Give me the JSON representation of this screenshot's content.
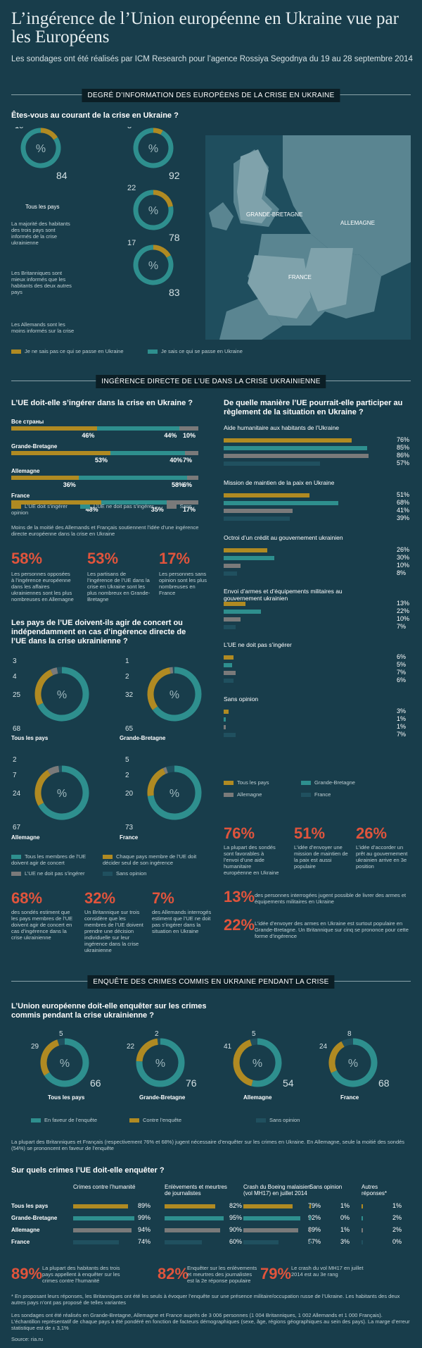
{
  "header": {
    "title": "L’ingérence de l’Union européenne en Ukraine vue par les Européens",
    "subtitle": "Les sondages ont été réalisés par ICM Research pour l’agence Rossiya Segodnya du 19 au 28 septembre 2014"
  },
  "colors": {
    "gold": "#b08a22",
    "teal": "#2e8f8e",
    "gray": "#7a7a7a",
    "dark": "#20505f",
    "red": "#e1543c",
    "bg": "#183d4b"
  },
  "sec1": {
    "title": "DEGRÉ D’INFORMATION DES EUROPÉENS DE LA CRISE EN UKRAINE",
    "question": "Êtes-vous au courant de la crise en Ukraine ?",
    "note1": "La majorité des habitants des trois pays sont informés de la crise ukrainienne",
    "note2": "Les Britanniques sont mieux informés que les habitants des deux autres pays",
    "note3": "Les Allemands sont les moins informés sur la crise",
    "legend_no": "Je ne sais pas ce qui se passe en Ukraine",
    "legend_yes": "Je sais ce qui se passe en Ukraine",
    "all_label": "Tous les pays",
    "map_labels": {
      "gb": "GRANDE-BRETAGNE",
      "de": "ALLEMAGNE",
      "fr": "FRANCE"
    }
  },
  "sec2": {
    "title": "INGÉRENCE DIRECTE DE L’UE DANS LA CRISE UKRAINIENNE",
    "q1": "L’UE doit-elle s’ingérer dans la crise en Ukraine ?",
    "q2": "De quelle manière l’UE pourrait-elle participer au règlement de la situation en Ukraine ?",
    "legend1": [
      "L’UE doit s’ingérer",
      "L’UE ne doit pas s’ingérer",
      "Sans opinion"
    ],
    "note": "Moins de la moitié des Allemands et Français soutiennent l’idée d’une ingérence directe européenne dans la crise en Ukraine",
    "stats1": [
      {
        "n": "58%",
        "t": "Les personnes opposées à l’ingérence européenne dans les affaires ukrainiennes sont les plus nombreuses en Allemagne"
      },
      {
        "n": "53%",
        "t": "Les partisans de l’ingérence de l’UE dans la crise en Ukraine sont les plus nombreux en Grande-Bretagne"
      },
      {
        "n": "17%",
        "t": "Les personnes sans opinion sont les plus nombreuses en France"
      }
    ],
    "q3": "Les pays de l’UE doivent-ils agir de concert ou indépendamment en cas d’ingérence directe de l’UE dans la crise ukrainienne ?",
    "legend3": [
      "Tous les membres de l’UE doivent agir de concert",
      "Chaque pays membre de l’UE doit décider seul de son ingérence",
      "L’UE ne doit pas s’ingérer",
      "Sans opinion"
    ],
    "stats3": [
      {
        "n": "68%",
        "t": "des sondés estiment que les pays membres de l’UE doivent agir de concert en cas d’ingérence dans la crise ukrainienne"
      },
      {
        "n": "32%",
        "t": "Un Britannique sur trois considère que les membres de l’UE doivent prendre une décision individuelle sur leur ingérence dans la crise ukrainienne"
      },
      {
        "n": "7%",
        "t": "des Allemands interrogés estiment que l’UE ne doit pas s’ingérer dans la situation en Ukraine"
      }
    ],
    "legend_countries": [
      "Tous les pays",
      "Grande-Bretagne",
      "Allemagne",
      "France"
    ],
    "stats2": [
      {
        "n": "76%",
        "t": "La plupart des sondés sont favorables à l’envoi d’une aide humanitaire européenne en Ukraine"
      },
      {
        "n": "51%",
        "t": "L’idée d’envoyer une mission de maintien de la paix est aussi populaire"
      },
      {
        "n": "26%",
        "t": "L’idée d’accorder un prêt au gouvernement ukrainien arrive en 3e position"
      }
    ],
    "stats2b": [
      {
        "n": "13%",
        "t": "des personnes interrogées jugent possible de livrer des armes et équipements militaires en Ukraine"
      },
      {
        "n": "22%",
        "t": "L’idée d’envoyer des armes en Ukraine est surtout populaire en Grande-Bretagne. Un Britannique sur cinq se prononce pour cette forme d’ingérence"
      }
    ]
  },
  "sec3": {
    "title": "ENQUÊTE DES CRIMES COMMIS EN UKRAINE PENDANT LA CRISE",
    "q1": "L’Union européenne doit-elle enquêter sur les crimes commis pendant la crise ukrainienne ?",
    "legend": [
      "En faveur de l’enquête",
      "Contre l’enquête",
      "Sans opinion"
    ],
    "note": "La plupart des Britanniques et Français (respectivement 76% et 68%) jugent nécessaire d’enquêter sur les crimes en Ukraine. En Allemagne, seule la moitié des sondés (54%) se prononcent en faveur de l’enquête",
    "q2": "Sur quels crimes l’UE doit-elle enquêter ?",
    "stats": [
      {
        "n": "89%",
        "t": "La plupart des habitants des trois pays appellent à enquêter sur les crimes contre l’humanité"
      },
      {
        "n": "82%",
        "t": "Enquêter sur les enlèvements et meurtres des journalistes est la 2e réponse populaire"
      },
      {
        "n": "79%",
        "t": "Le crash du vol MH17 en juillet 2014 est au 3e rang"
      }
    ],
    "footnote": "* En proposant leurs réponses, les Britanniques ont été les seuls à évoquer l’enquête sur une présence militaire/occupation russe de l’Ukraine. Les habitants des deux autres pays n’ont pas proposé de telles variantes",
    "method": "Les sondages ont été réalisés en Grande-Bretagne, Allemagne et France auprès de 3 006 personnes (1 004 Britanniques, 1 002 Allemands et 1 000 Français). L’échantillon représentatif de chaque pays a été pondéré en fonction de facteurs démographiques (sexe, âge, régions géographiques au sein des pays). La marge d’erreur statistique est de ± 3,1%",
    "source": "Source: ria.ru"
  },
  "chart_data": [
    {
      "type": "donut",
      "title": "Êtes-vous au courant de la crise en Ukraine ?",
      "series": [
        {
          "name": "Tous les pays",
          "values": [
            16,
            84
          ]
        },
        {
          "name": "Grande-Bretagne",
          "values": [
            8,
            92
          ]
        },
        {
          "name": "Allemagne",
          "values": [
            22,
            78
          ]
        },
        {
          "name": "France",
          "values": [
            17,
            83
          ]
        }
      ],
      "categories": [
        "Je ne sais pas ce qui se passe en Ukraine",
        "Je sais ce qui se passe en Ukraine"
      ]
    },
    {
      "type": "bar",
      "title": "L’UE doit-elle s’ingérer dans la crise en Ukraine ?",
      "categories": [
        "Все страны",
        "Grande-Bretagne",
        "Allemagne",
        "France"
      ],
      "series": [
        {
          "name": "L’UE doit s’ingérer",
          "values": [
            46,
            53,
            36,
            48
          ]
        },
        {
          "name": "L’UE ne doit pas s’ingérer",
          "values": [
            44,
            40,
            58,
            35
          ]
        },
        {
          "name": "Sans opinion",
          "values": [
            10,
            7,
            6,
            17
          ]
        }
      ]
    },
    {
      "type": "bar",
      "title": "De quelle manière l’UE pourrait-elle participer au règlement de la situation en Ukraine ?",
      "categories": [
        "Aide humanitaire aux habitants de l’Ukraine",
        "Mission de maintien de la paix en Ukraine",
        "Octroi d’un crédit au gouvernement ukrainien",
        "Envoi d’armes et d’équipements militaires au gouvernement ukrainien",
        "L’UE ne doit pas s’ingérer",
        "Sans opinion"
      ],
      "series": [
        {
          "name": "Tous les pays",
          "values": [
            76,
            51,
            26,
            13,
            6,
            3
          ]
        },
        {
          "name": "Grande-Bretagne",
          "values": [
            85,
            68,
            30,
            22,
            5,
            1
          ]
        },
        {
          "name": "Allemagne",
          "values": [
            86,
            41,
            10,
            10,
            7,
            1
          ]
        },
        {
          "name": "France",
          "values": [
            57,
            39,
            8,
            7,
            6,
            7
          ]
        }
      ]
    },
    {
      "type": "donut",
      "title": "Les pays de l’UE doivent-ils agir de concert ou indépendamment en cas d’ingérence directe de l’UE dans la crise ukrainienne ?",
      "categories": [
        "Tous les membres de l’UE doivent agir de concert",
        "Chaque pays membre de l’UE doit décider seul de son ingérence",
        "L’UE ne doit pas s’ingérer",
        "Sans opinion"
      ],
      "series": [
        {
          "name": "Tous les pays",
          "values": [
            68,
            25,
            4,
            3
          ]
        },
        {
          "name": "Grande-Bretagne",
          "values": [
            65,
            32,
            2,
            1
          ]
        },
        {
          "name": "Allemagne",
          "values": [
            67,
            24,
            7,
            2
          ]
        },
        {
          "name": "France",
          "values": [
            73,
            20,
            2,
            5
          ]
        }
      ]
    },
    {
      "type": "donut",
      "title": "L’Union européenne doit-elle enquêter sur les crimes commis pendant la crise ukrainienne ?",
      "categories": [
        "En faveur de l’enquête",
        "Contre l’enquête",
        "Sans opinion"
      ],
      "series": [
        {
          "name": "Tous les pays",
          "values": [
            66,
            29,
            5
          ]
        },
        {
          "name": "Grande-Bretagne",
          "values": [
            76,
            22,
            2
          ]
        },
        {
          "name": "Allemagne",
          "values": [
            54,
            41,
            5
          ]
        },
        {
          "name": "France",
          "values": [
            68,
            24,
            8
          ]
        }
      ]
    },
    {
      "type": "table",
      "title": "Sur quels crimes l’UE doit-elle enquêter ?",
      "columns": [
        "Crimes contre l’humanité",
        "Enlèvements et meurtres de journalistes",
        "Crash du Boeing malaisien (vol MH17) en juillet 2014",
        "Sans opinion",
        "Autres réponses*"
      ],
      "rows": [
        {
          "name": "Tous les pays",
          "values": [
            89,
            82,
            79,
            1,
            1
          ]
        },
        {
          "name": "Grande-Bretagne",
          "values": [
            99,
            95,
            92,
            0,
            2
          ]
        },
        {
          "name": "Allemagne",
          "values": [
            94,
            90,
            89,
            1,
            2
          ]
        },
        {
          "name": "France",
          "values": [
            74,
            60,
            57,
            3,
            0
          ]
        }
      ]
    }
  ]
}
